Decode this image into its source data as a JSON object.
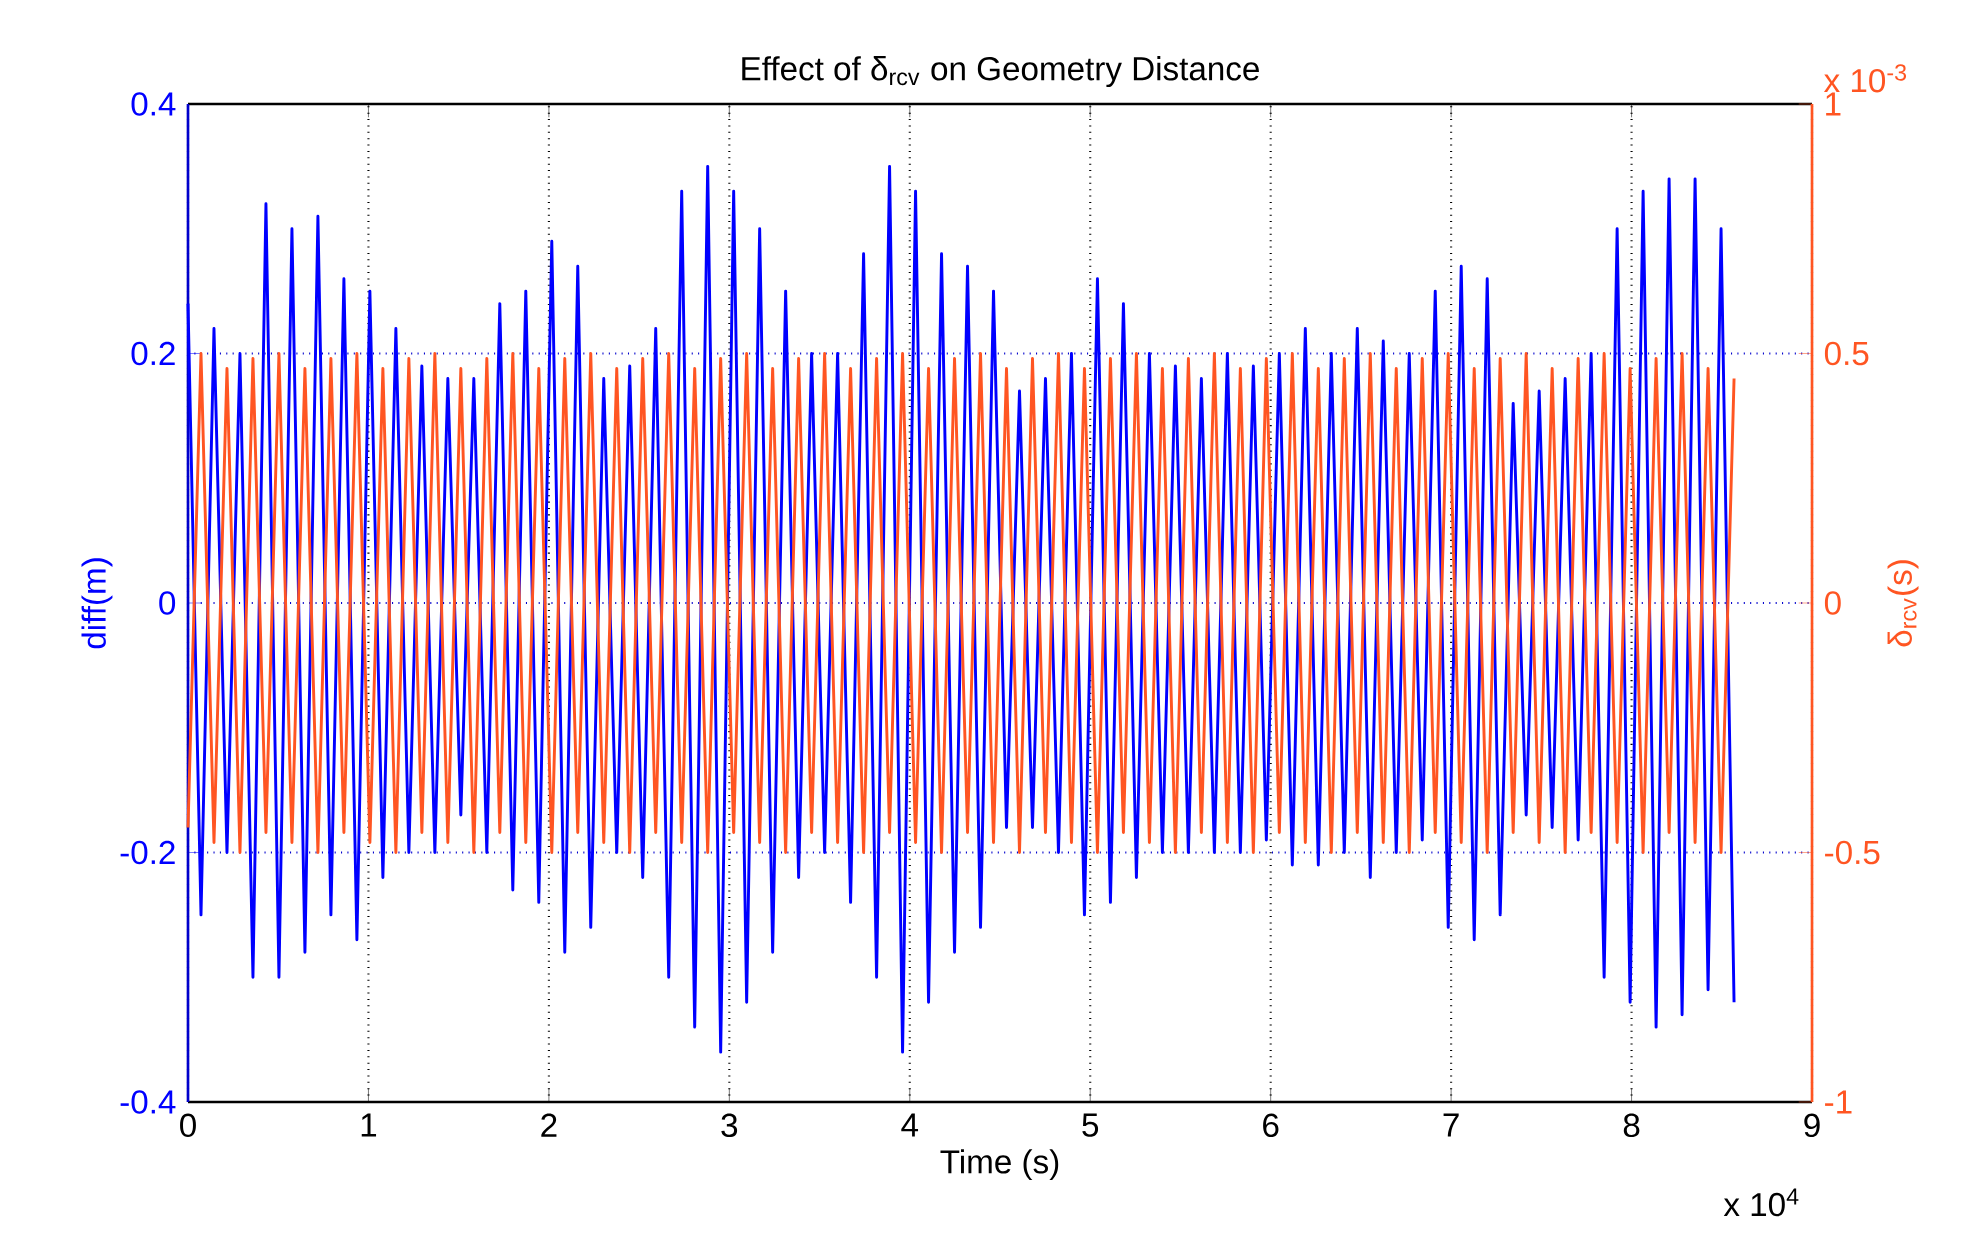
{
  "chart_data": {
    "type": "line",
    "title": "Effect of δ$_{rcv}$ on Geometry Distance",
    "xlabel": "Time (s)",
    "ylabel": "diff(m)",
    "y2label": "δ$_{rcv}$(s)",
    "annotations": [
      "x 10$^{4}$",
      "x 10$^{-3}$"
    ],
    "grid": true,
    "marker": "none",
    "line_style": "solid",
    "xlim": [
      0,
      9
    ],
    "xticks": [
      0,
      1,
      2,
      3,
      4,
      5,
      6,
      7,
      8,
      9
    ],
    "ylim": [
      -0.4,
      0.4
    ],
    "yticks": [
      -0.4,
      -0.2,
      0,
      0.2,
      0.4
    ],
    "y2lim": [
      -1,
      1
    ],
    "y2ticks": [
      -1,
      -0.5,
      0,
      0.5,
      1
    ],
    "x": [
      0,
      0.072,
      0.144,
      0.216,
      0.288,
      0.36,
      0.432,
      0.504,
      0.576,
      0.648,
      0.72,
      0.792,
      0.864,
      0.936,
      1.008,
      1.08,
      1.152,
      1.224,
      1.296,
      1.368,
      1.44,
      1.512,
      1.584,
      1.656,
      1.728,
      1.8,
      1.872,
      1.944,
      2.016,
      2.088,
      2.16,
      2.232,
      2.304,
      2.376,
      2.448,
      2.52,
      2.592,
      2.664,
      2.736,
      2.808,
      2.88,
      2.952,
      3.024,
      3.096,
      3.168,
      3.24,
      3.312,
      3.384,
      3.456,
      3.528,
      3.6,
      3.672,
      3.744,
      3.816,
      3.888,
      3.96,
      4.032,
      4.104,
      4.176,
      4.248,
      4.32,
      4.392,
      4.464,
      4.536,
      4.608,
      4.68,
      4.752,
      4.824,
      4.896,
      4.968,
      5.04,
      5.112,
      5.184,
      5.256,
      5.328,
      5.4,
      5.472,
      5.544,
      5.616,
      5.688,
      5.76,
      5.832,
      5.904,
      5.976,
      6.048,
      6.12,
      6.192,
      6.264,
      6.336,
      6.408,
      6.48,
      6.552,
      6.624,
      6.696,
      6.768,
      6.84,
      6.912,
      6.984,
      7.056,
      7.128,
      7.2,
      7.272,
      7.344,
      7.416,
      7.488,
      7.56,
      7.632,
      7.704,
      7.776,
      7.848,
      7.92,
      7.992,
      8.064,
      8.136,
      8.208,
      8.28,
      8.352,
      8.424,
      8.496,
      8.568
    ],
    "series": [
      {
        "color": "#0000ff",
        "values": [
          0.24,
          -0.25,
          0.22,
          -0.2,
          0.2,
          -0.3,
          0.32,
          -0.3,
          0.3,
          -0.28,
          0.31,
          -0.25,
          0.26,
          -0.27,
          0.25,
          -0.22,
          0.22,
          -0.2,
          0.19,
          -0.2,
          0.18,
          -0.17,
          0.18,
          -0.2,
          0.24,
          -0.23,
          0.25,
          -0.24,
          0.29,
          -0.28,
          0.27,
          -0.26,
          0.18,
          -0.2,
          0.19,
          -0.22,
          0.22,
          -0.3,
          0.33,
          -0.34,
          0.35,
          -0.36,
          0.33,
          -0.32,
          0.3,
          -0.28,
          0.25,
          -0.22,
          0.2,
          -0.2,
          0.2,
          -0.24,
          0.28,
          -0.3,
          0.35,
          -0.36,
          0.33,
          -0.32,
          0.28,
          -0.28,
          0.27,
          -0.26,
          0.25,
          -0.18,
          0.17,
          -0.18,
          0.18,
          -0.2,
          0.2,
          -0.25,
          0.26,
          -0.24,
          0.24,
          -0.22,
          0.2,
          -0.2,
          0.19,
          -0.2,
          0.18,
          -0.2,
          0.2,
          -0.2,
          0.19,
          -0.19,
          0.2,
          -0.21,
          0.22,
          -0.21,
          0.2,
          -0.2,
          0.22,
          -0.22,
          0.21,
          -0.2,
          0.2,
          -0.19,
          0.25,
          -0.26,
          0.27,
          -0.27,
          0.26,
          -0.25,
          0.16,
          -0.17,
          0.17,
          -0.18,
          0.18,
          -0.19,
          0.2,
          -0.3,
          0.3,
          -0.32,
          0.33,
          -0.34,
          0.34,
          -0.33,
          0.34,
          -0.31,
          0.3,
          -0.32
        ]
      },
      {
        "color": "#ff5522",
        "axis": "y2",
        "values": [
          -0.45,
          0.5,
          -0.48,
          0.47,
          -0.5,
          0.49,
          -0.46,
          0.5,
          -0.48,
          0.47,
          -0.5,
          0.49,
          -0.46,
          0.5,
          -0.48,
          0.47,
          -0.5,
          0.49,
          -0.46,
          0.5,
          -0.48,
          0.47,
          -0.5,
          0.49,
          -0.46,
          0.5,
          -0.48,
          0.47,
          -0.5,
          0.49,
          -0.46,
          0.5,
          -0.48,
          0.47,
          -0.5,
          0.49,
          -0.46,
          0.5,
          -0.48,
          0.47,
          -0.5,
          0.49,
          -0.46,
          0.5,
          -0.48,
          0.47,
          -0.5,
          0.49,
          -0.46,
          0.5,
          -0.48,
          0.47,
          -0.5,
          0.49,
          -0.46,
          0.5,
          -0.48,
          0.47,
          -0.5,
          0.49,
          -0.46,
          0.5,
          -0.48,
          0.47,
          -0.5,
          0.49,
          -0.46,
          0.5,
          -0.48,
          0.47,
          -0.5,
          0.49,
          -0.46,
          0.5,
          -0.48,
          0.47,
          -0.5,
          0.49,
          -0.46,
          0.5,
          -0.48,
          0.47,
          -0.5,
          0.49,
          -0.46,
          0.5,
          -0.48,
          0.47,
          -0.5,
          0.49,
          -0.46,
          0.5,
          -0.48,
          0.47,
          -0.5,
          0.49,
          -0.46,
          0.5,
          -0.48,
          0.47,
          -0.5,
          0.49,
          -0.46,
          0.5,
          -0.48,
          0.47,
          -0.5,
          0.49,
          -0.46,
          0.5,
          -0.48,
          0.47,
          -0.5,
          0.49,
          -0.46,
          0.5,
          -0.48,
          0.47,
          -0.5,
          0.45
        ]
      }
    ]
  }
}
